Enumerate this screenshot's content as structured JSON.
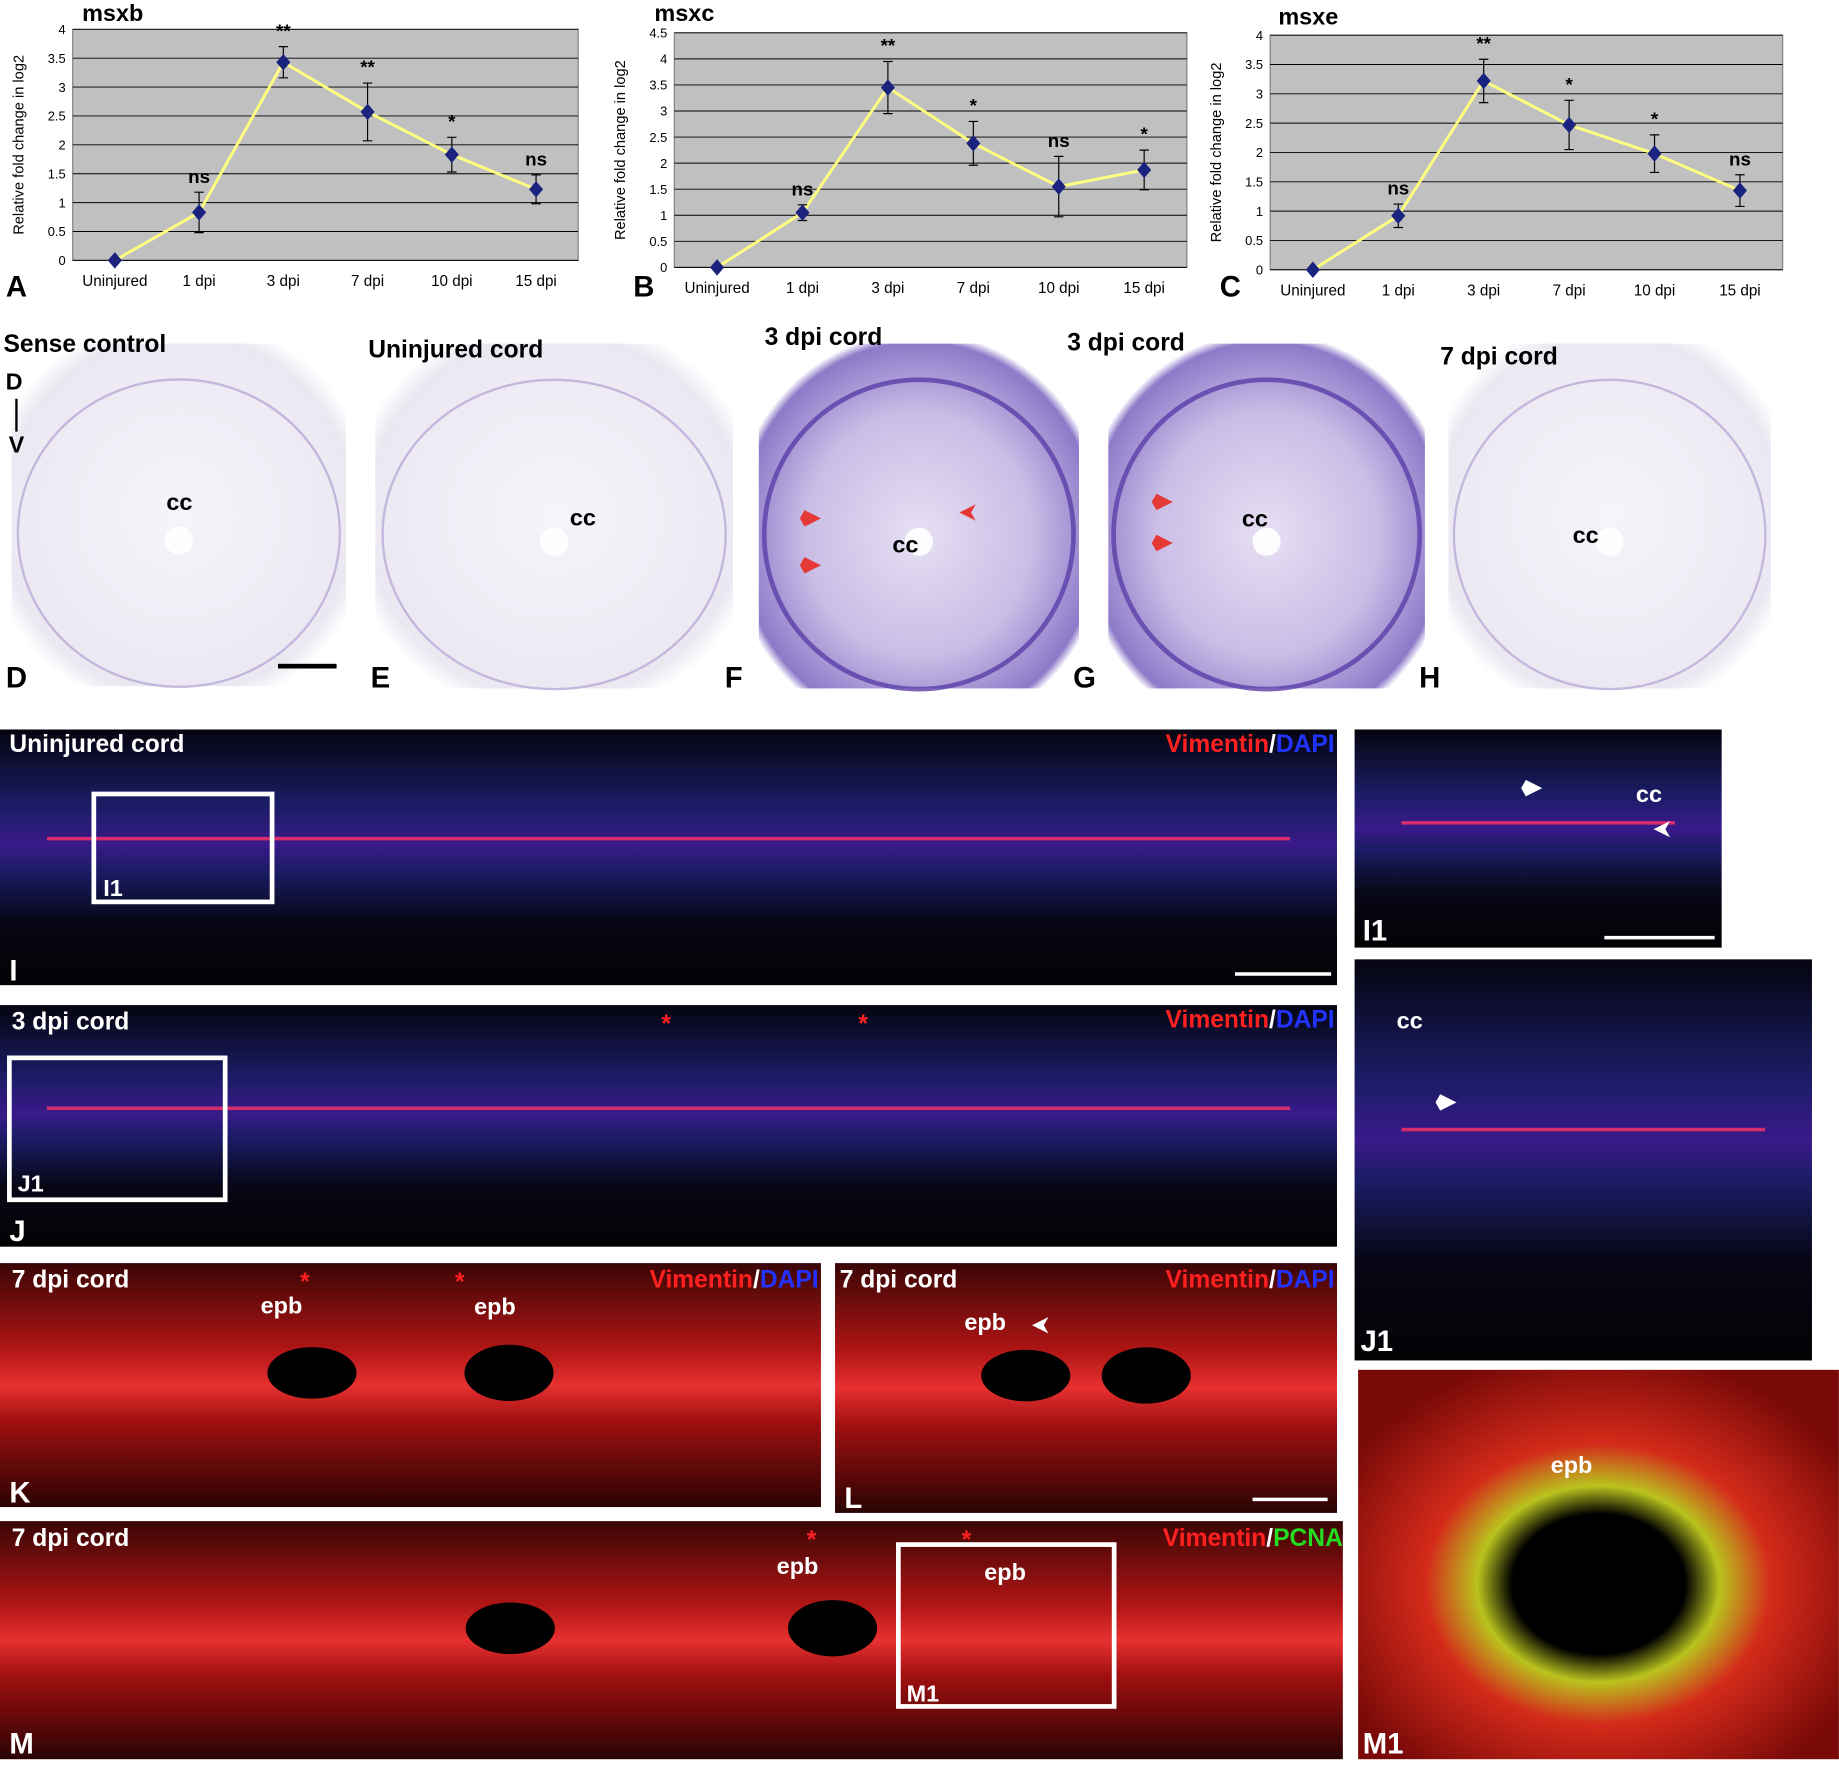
{
  "chart_data": [
    {
      "type": "line",
      "title": "msxb",
      "panel_label": "A",
      "ylabel": "Relative fold change in log2",
      "categories": [
        "Uninjured",
        "1 dpi",
        "3 dpi",
        "7 dpi",
        "10 dpi",
        "15 dpi"
      ],
      "values": [
        0,
        0.83,
        3.43,
        2.57,
        1.83,
        1.23
      ],
      "errors": [
        0,
        0.35,
        0.27,
        0.5,
        0.3,
        0.25
      ],
      "annotations": [
        null,
        "ns",
        "**",
        "**",
        "*",
        "ns"
      ],
      "ylim": [
        0,
        4
      ],
      "yticks": [
        0,
        0.5,
        1,
        1.5,
        2,
        2.5,
        3,
        3.5,
        4
      ],
      "grid": true,
      "line_color": "#ffff80",
      "marker_color": "#1a237e"
    },
    {
      "type": "line",
      "title": "msxc",
      "panel_label": "B",
      "ylabel": "Relative fold change in log2",
      "categories": [
        "Uninjured",
        "1 dpi",
        "3 dpi",
        "7 dpi",
        "10 dpi",
        "15 dpi"
      ],
      "values": [
        0,
        1.05,
        3.45,
        2.38,
        1.55,
        1.87
      ],
      "errors": [
        0,
        0.15,
        0.5,
        0.42,
        0.58,
        0.38
      ],
      "annotations": [
        null,
        "ns",
        "**",
        "*",
        "ns",
        "*"
      ],
      "ylim": [
        0,
        4.5
      ],
      "yticks": [
        0,
        0.5,
        1,
        1.5,
        2,
        2.5,
        3,
        3.5,
        4,
        4.5
      ],
      "grid": true,
      "line_color": "#ffff80",
      "marker_color": "#1a237e"
    },
    {
      "type": "line",
      "title": "msxe",
      "panel_label": "C",
      "ylabel": "Relative fold change in log2",
      "categories": [
        "Uninjured",
        "1 dpi",
        "3 dpi",
        "7 dpi",
        "10 dpi",
        "15 dpi"
      ],
      "values": [
        0,
        0.92,
        3.22,
        2.47,
        1.98,
        1.35
      ],
      "errors": [
        0,
        0.2,
        0.37,
        0.42,
        0.32,
        0.27
      ],
      "annotations": [
        null,
        "ns",
        "**",
        "*",
        "*",
        "ns"
      ],
      "ylim": [
        0,
        4
      ],
      "yticks": [
        0,
        0.5,
        1,
        1.5,
        2,
        2.5,
        3,
        3.5,
        4
      ],
      "grid": true,
      "line_color": "#ffff80",
      "marker_color": "#1a237e"
    }
  ],
  "panels": {
    "D": {
      "title": "Sense control",
      "axis_top": "D",
      "axis_bottom": "V",
      "labels": [
        "cc"
      ],
      "letter": "D"
    },
    "E": {
      "title": "Uninjured cord",
      "labels": [
        "cc"
      ],
      "letter": "E"
    },
    "F": {
      "title": "3 dpi cord",
      "labels": [
        "cc"
      ],
      "letter": "F"
    },
    "G": {
      "title": "3 dpi cord",
      "labels": [
        "cc"
      ],
      "letter": "G"
    },
    "H": {
      "title": "7 dpi cord",
      "labels": [
        "cc"
      ],
      "letter": "H"
    },
    "I": {
      "title": "Uninjured cord",
      "stain": [
        "Vimentin",
        "/",
        "DAPI"
      ],
      "inset": "I1",
      "letter": "I"
    },
    "I1": {
      "labels": [
        "cc"
      ],
      "letter": "I1"
    },
    "J": {
      "title": "3 dpi cord",
      "labels": [
        "*",
        "*"
      ],
      "stain": [
        "Vimentin",
        "/",
        "DAPI"
      ],
      "inset": "J1",
      "letter": "J"
    },
    "J1": {
      "labels": [
        "cc"
      ],
      "letter": "J1"
    },
    "K": {
      "title": "7 dpi cord",
      "labels": [
        "*",
        "*",
        "epb",
        "epb"
      ],
      "stain": [
        "Vimentin",
        "/",
        "DAPI"
      ],
      "letter": "K"
    },
    "L": {
      "title": "7 dpi cord",
      "labels": [
        "epb"
      ],
      "stain": [
        "Vimentin",
        "/",
        "DAPI"
      ],
      "letter": "L"
    },
    "M": {
      "title": "7 dpi cord",
      "labels": [
        "*",
        "*",
        "epb",
        "epb"
      ],
      "stain": [
        "Vimentin",
        "/",
        "PCNA"
      ],
      "inset": "M1",
      "letter": "M"
    },
    "M1": {
      "labels": [
        "epb"
      ],
      "letter": "M1"
    }
  }
}
